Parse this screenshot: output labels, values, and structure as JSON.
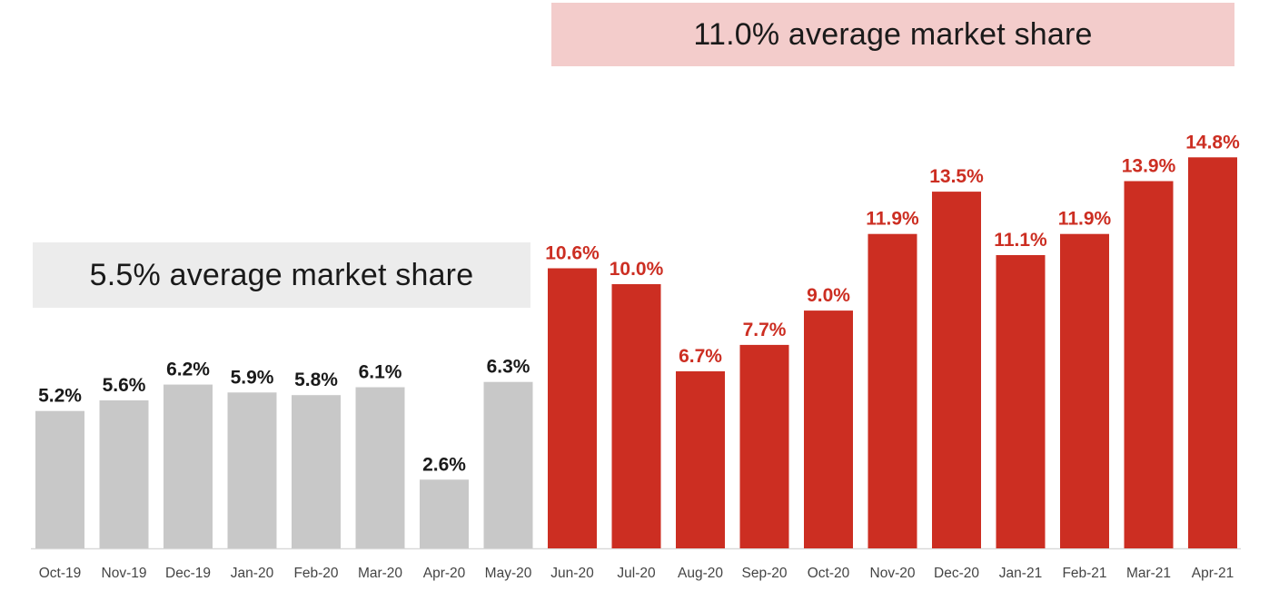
{
  "chart_data": {
    "type": "bar",
    "categories": [
      "Oct-19",
      "Nov-19",
      "Dec-19",
      "Jan-20",
      "Feb-20",
      "Mar-20",
      "Apr-20",
      "May-20",
      "Jun-20",
      "Jul-20",
      "Aug-20",
      "Sep-20",
      "Oct-20",
      "Nov-20",
      "Dec-20",
      "Jan-21",
      "Feb-21",
      "Mar-21",
      "Apr-21"
    ],
    "values": [
      5.2,
      5.6,
      6.2,
      5.9,
      5.8,
      6.1,
      2.6,
      6.3,
      10.6,
      10.0,
      6.7,
      7.7,
      9.0,
      11.9,
      13.5,
      11.1,
      11.9,
      13.9,
      14.8
    ],
    "value_labels": [
      "5.2%",
      "5.6%",
      "6.2%",
      "5.9%",
      "5.8%",
      "6.1%",
      "2.6%",
      "6.3%",
      "10.6%",
      "10.0%",
      "6.7%",
      "7.7%",
      "9.0%",
      "11.9%",
      "13.5%",
      "11.1%",
      "11.9%",
      "13.9%",
      "14.8%"
    ],
    "ylim": [
      0,
      16
    ],
    "grid": false,
    "groups": [
      {
        "from_index": 0,
        "to_index": 7,
        "bar_color": "#c8c8c8",
        "label_color": "#1a1a1a",
        "annotation": "5.5% average market share",
        "annotation_bg": "#ececec"
      },
      {
        "from_index": 8,
        "to_index": 18,
        "bar_color": "#cc2e22",
        "label_color": "#cc2e22",
        "annotation": "11.0% average market share",
        "annotation_bg": "#f3cccb"
      }
    ],
    "baseline_color": "#d9d9d9",
    "tick_label_color": "#444444"
  }
}
